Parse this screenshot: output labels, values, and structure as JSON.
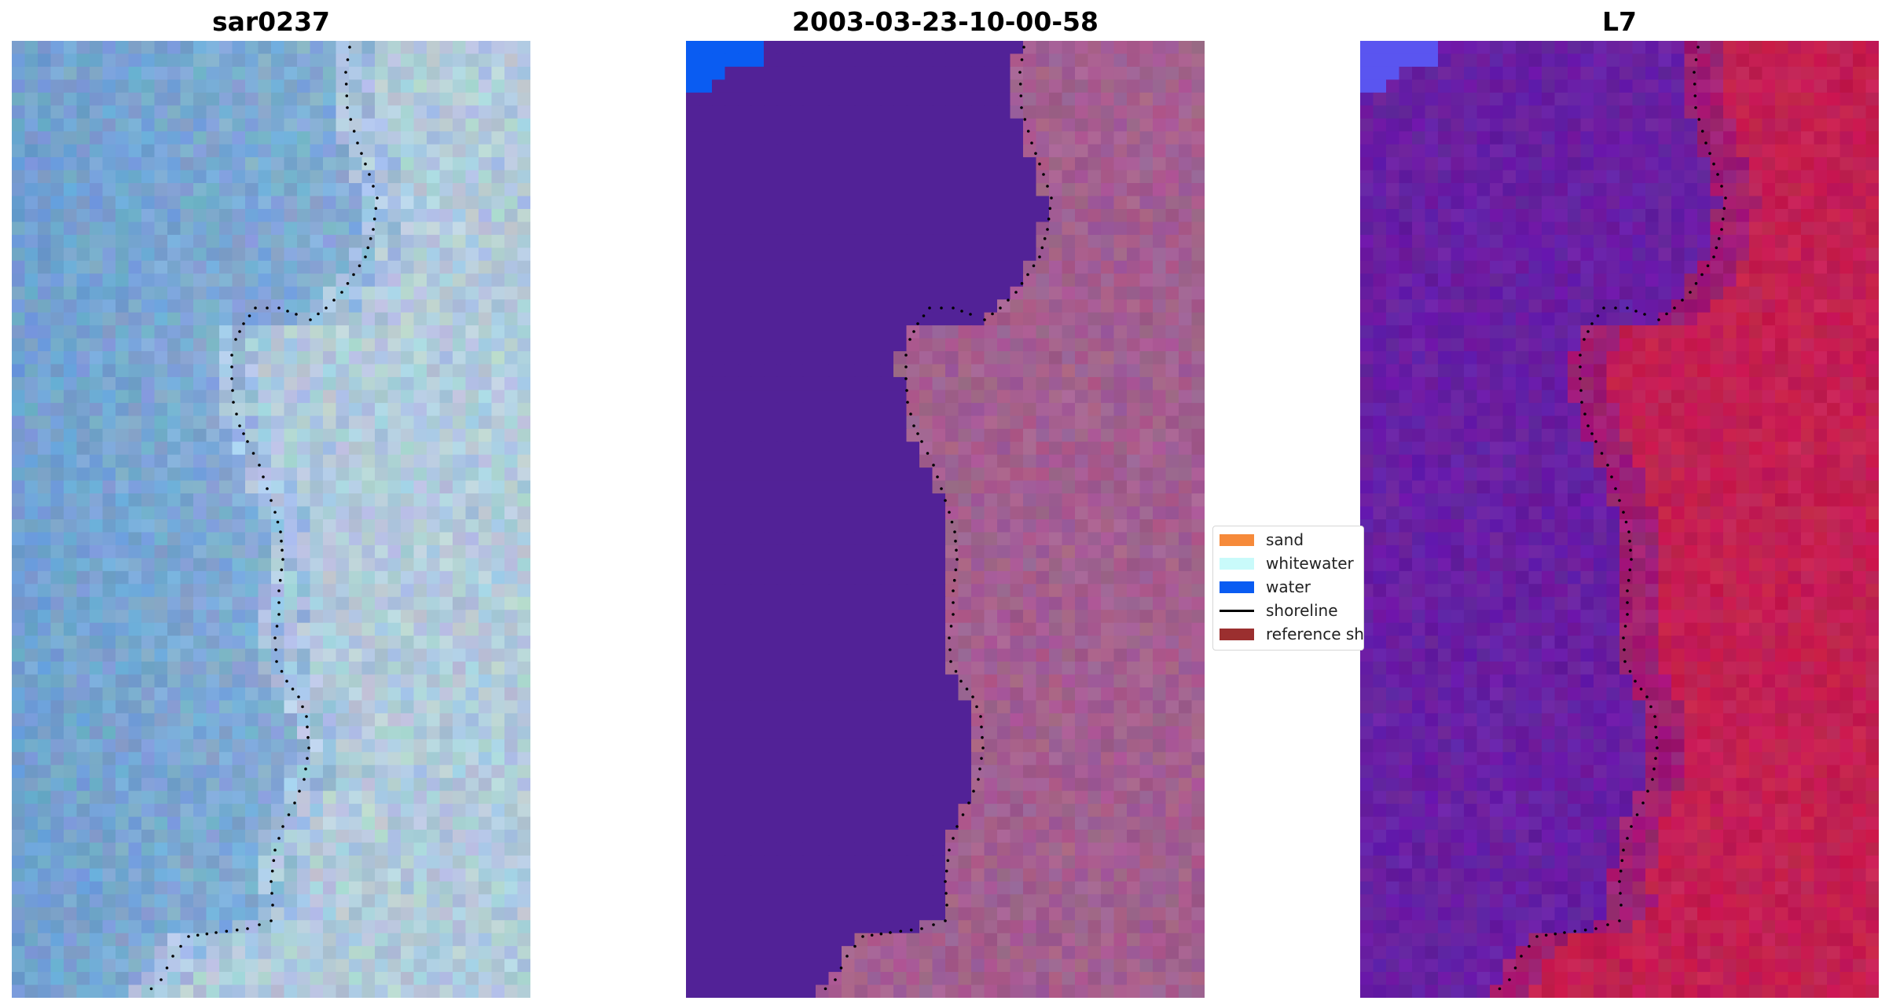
{
  "panels": [
    {
      "title": "sar0237"
    },
    {
      "title": "2003-03-23-10-00-58"
    },
    {
      "title": "L7"
    }
  ],
  "legend": {
    "items": [
      {
        "label": "sand",
        "kind": "patch",
        "color": "#f68a3a"
      },
      {
        "label": "whitewater",
        "kind": "patch",
        "color": "#c9fafa"
      },
      {
        "label": "water",
        "kind": "patch",
        "color": "#0a5cf2"
      },
      {
        "label": "shoreline",
        "kind": "line",
        "color": "#000000"
      },
      {
        "label": "reference shoreline",
        "kind": "patch",
        "color": "#9b2f2f"
      }
    ]
  },
  "colors": {
    "rgb_sea": "#6fa0d0",
    "rgb_land": "#a9c4dc",
    "classified_water": "#522297",
    "classified_land": "#a35f8f",
    "classified_blue": "#0a5cf2",
    "index_water": "#6a1fa6",
    "index_land": "#c21c4f",
    "index_blue": "#5a55f0"
  }
}
